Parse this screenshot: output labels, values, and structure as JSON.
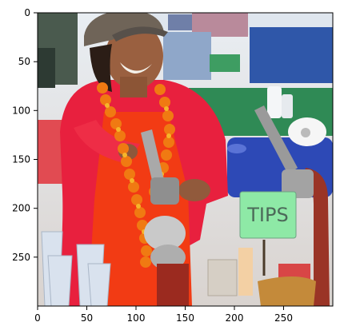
{
  "axes": {
    "x_ticks": [
      "0",
      "50",
      "100",
      "150",
      "200",
      "250"
    ],
    "y_ticks": [
      "0",
      "50",
      "100",
      "150",
      "200",
      "250"
    ]
  },
  "image": {
    "sign_text": "TIPS",
    "colors": {
      "sign_fill": "#8ee9a6",
      "shirt": "#e8203e",
      "apron": "#f23b14",
      "lei": "#f07a12",
      "cap": "#6f6458",
      "cooler": "#2d49b6",
      "table_cloth": "#2f8a55",
      "juicer": "#9a3426"
    }
  }
}
